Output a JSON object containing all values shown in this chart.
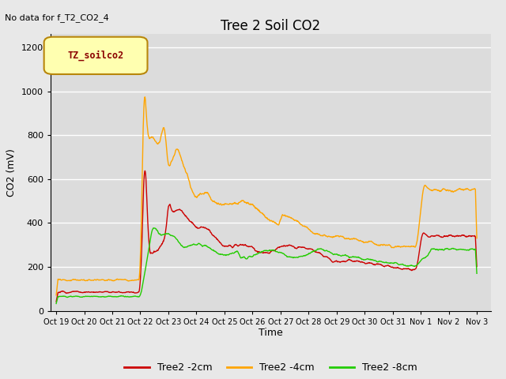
{
  "title": "Tree 2 Soil CO2",
  "subtitle": "No data for f_T2_CO2_4",
  "ylabel": "CO2 (mV)",
  "xlabel": "Time",
  "legend_label": "TZ_soilco2",
  "ylim": [
    0,
    1260
  ],
  "yticks": [
    0,
    200,
    400,
    600,
    800,
    1000,
    1200
  ],
  "fig_bg_color": "#e8e8e8",
  "plot_bg_color": "#dcdcdc",
  "series": {
    "red": {
      "label": "Tree2 -2cm",
      "color": "#cc0000"
    },
    "orange": {
      "label": "Tree2 -4cm",
      "color": "#ffa500"
    },
    "green": {
      "label": "Tree2 -8cm",
      "color": "#22cc00"
    }
  },
  "x_ticks": [
    "Oct 19",
    "Oct 20",
    "Oct 21",
    "Oct 22",
    "Oct 23",
    "Oct 24",
    "Oct 25",
    "Oct 26",
    "Oct 27",
    "Oct 28",
    "Oct 29",
    "Oct 30",
    "Oct 31",
    "Nov 1",
    "Nov 2",
    "Nov 3"
  ],
  "num_days": 16
}
